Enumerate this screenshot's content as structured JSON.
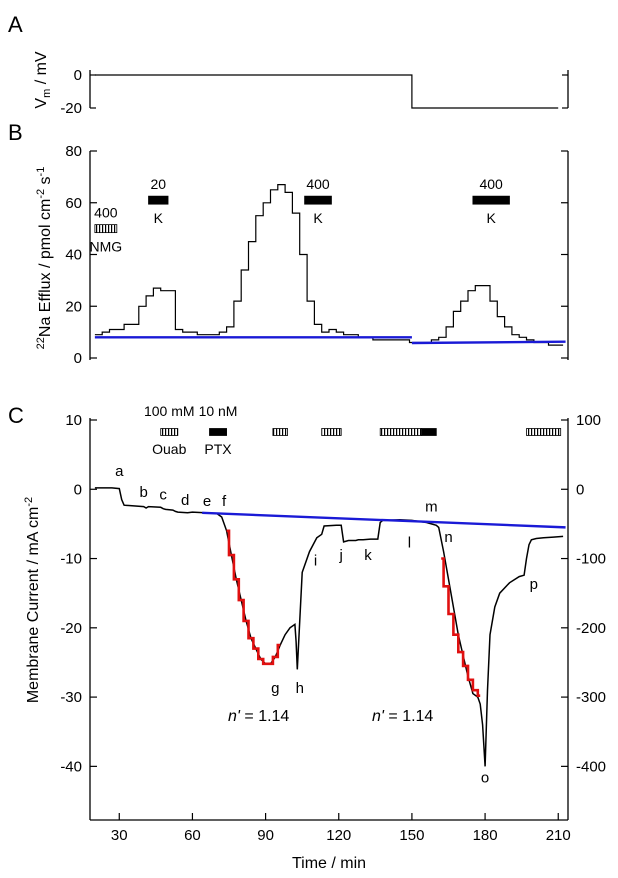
{
  "chart_data": [
    {
      "panel": "A",
      "type": "line",
      "ylabel_main": "V",
      "ylabel_sub": "m",
      "ylabel_unit": " / mV",
      "yticks": [
        0,
        -20
      ],
      "ylim": [
        -20,
        0
      ],
      "series": [
        {
          "x": [
            20,
            150,
            150,
            210
          ],
          "y": [
            0,
            0,
            -20,
            -20
          ]
        }
      ]
    },
    {
      "panel": "B",
      "type": "line",
      "ylabel": "22Na Efflux / pmol cm-2 s-1",
      "ylabel_parts": {
        "sup1": "22",
        "base": "Na Efflux / pmol cm",
        "sup2": "-2",
        "base2": " s",
        "sup3": "-1"
      },
      "yticks": [
        0,
        20,
        40,
        60,
        80
      ],
      "ylim": [
        0,
        80
      ],
      "step_series": {
        "x": [
          20,
          23,
          26,
          29,
          32,
          35,
          38,
          41,
          44,
          47,
          50,
          53,
          56,
          59,
          62,
          65,
          68,
          71,
          74,
          77,
          80,
          83,
          86,
          89,
          92,
          95,
          98,
          101,
          104,
          107,
          110,
          113,
          116,
          119,
          122,
          125,
          128,
          131,
          134,
          137,
          140,
          143,
          146,
          149,
          152,
          155,
          158,
          161,
          164,
          167,
          170,
          173,
          176,
          179,
          182,
          185,
          188,
          191,
          194,
          197,
          200,
          203,
          206,
          209
        ],
        "y": [
          9,
          10,
          11,
          11,
          13,
          13,
          20,
          24,
          27,
          26,
          26,
          11,
          10,
          10,
          9,
          9,
          9,
          10,
          12,
          22,
          34,
          45,
          55,
          60,
          65,
          67,
          64,
          56,
          40,
          22,
          13,
          10,
          11,
          10,
          9,
          9,
          8,
          8,
          7,
          7,
          7,
          7,
          7,
          6,
          6,
          6,
          7,
          8,
          12,
          18,
          22,
          26,
          28,
          28,
          22,
          16,
          12,
          9,
          8,
          7,
          6,
          6,
          5,
          5
        ]
      },
      "baseline_segments": [
        {
          "x": [
            20,
            150
          ],
          "y": [
            8,
            8
          ]
        },
        {
          "x": [
            150,
            213
          ],
          "y": [
            5.8,
            6.3
          ]
        }
      ],
      "bars": [
        {
          "x0": 20,
          "x1": 29,
          "y": 50,
          "style": "hatched",
          "top": "400",
          "bottom": "NMG"
        },
        {
          "x0": 42,
          "x1": 50,
          "y": 61,
          "style": "solid",
          "top": "20",
          "bottom": "K"
        },
        {
          "x0": 106,
          "x1": 117,
          "y": 61,
          "style": "solid",
          "top": "400",
          "bottom": "K"
        },
        {
          "x0": 175,
          "x1": 190,
          "y": 61,
          "style": "solid",
          "top": "400",
          "bottom": "K"
        }
      ]
    },
    {
      "panel": "C",
      "type": "line",
      "ylabel": "Membrane Current / mA cm-2",
      "ylabel_parts": {
        "base": "Membrane Current / mA cm",
        "sup": "-2"
      },
      "xlabel": "Time / min",
      "xticks": [
        30,
        60,
        90,
        120,
        150,
        180,
        210
      ],
      "yticks_left": [
        10,
        0,
        -10,
        -20,
        -30,
        -40
      ],
      "yticks_right": [
        100,
        0,
        -100,
        -200,
        -300,
        -400
      ],
      "ylim_left": [
        -45,
        10
      ],
      "ylim_right": [
        -450,
        100
      ],
      "xlim": [
        18,
        214
      ],
      "current_trace": {
        "x": [
          20,
          27,
          30,
          31,
          32,
          40,
          41,
          42,
          47,
          48,
          49,
          52,
          53,
          54,
          58,
          60,
          65,
          70,
          72,
          74,
          76,
          78,
          80,
          82,
          84,
          86,
          88,
          90,
          92,
          94,
          96,
          98,
          100,
          102,
          102.5,
          103,
          105,
          108,
          111,
          113,
          114,
          119,
          121,
          122,
          124,
          127,
          128,
          130,
          133,
          136,
          137,
          138,
          139,
          145,
          150,
          152,
          156,
          158,
          160,
          161,
          163,
          165,
          167,
          169,
          171,
          173,
          175,
          177,
          178,
          179,
          180,
          181,
          182,
          184,
          186,
          190,
          194,
          196,
          197,
          198,
          199,
          201,
          204,
          208,
          212
        ],
        "y": [
          0.2,
          0.2,
          0.1,
          -1.5,
          -2.3,
          -2.5,
          -2.7,
          -2.5,
          -2.6,
          -2.8,
          -2.9,
          -3.0,
          -3.2,
          -3.3,
          -3.4,
          -3.3,
          -3.4,
          -3.5,
          -4,
          -6,
          -9.5,
          -13,
          -16,
          -19,
          -21.5,
          -23,
          -24.5,
          -25.2,
          -25.2,
          -24.2,
          -22.5,
          -21,
          -20,
          -19.5,
          -22,
          -26,
          -12,
          -9,
          -7,
          -6.5,
          -5.3,
          -5.2,
          -5.2,
          -7.6,
          -7.4,
          -7.4,
          -7.3,
          -7.3,
          -7.2,
          -7.2,
          -4.8,
          -4.5,
          -4.5,
          -4.4,
          -4.5,
          -4.6,
          -4.8,
          -5,
          -5.2,
          -5.5,
          -9,
          -13,
          -17,
          -21,
          -24,
          -27,
          -29.5,
          -30,
          -31,
          -34,
          -40,
          -29,
          -21,
          -17,
          -15,
          -13.5,
          -12.6,
          -12.4,
          -10,
          -8,
          -7.3,
          -7.1,
          -7.0,
          -6.9,
          -6.8
        ]
      },
      "baseline_segment": {
        "x": [
          64,
          213
        ],
        "y": [
          -3.4,
          -5.5
        ]
      },
      "fits": [
        {
          "x": [
            74,
            76,
            78,
            80,
            82,
            84,
            86,
            88,
            90,
            92,
            94,
            96
          ],
          "y": [
            -6,
            -9.5,
            -13,
            -16,
            -19,
            -21.5,
            -23,
            -24.5,
            -25.2,
            -25.2,
            -24.2,
            -22.5
          ],
          "n_prime": "1.14"
        },
        {
          "x": [
            162,
            164,
            166,
            168,
            170,
            172,
            174,
            176,
            178
          ],
          "y": [
            -10,
            -14,
            -18,
            -21,
            -23.5,
            -25.5,
            -27.5,
            -29,
            -29.8
          ],
          "n_prime": "1.14"
        }
      ],
      "bars": [
        {
          "x0": 47,
          "x1": 54,
          "style": "hatched",
          "top": "100 mM",
          "bottom": "Ouab"
        },
        {
          "x0": 67,
          "x1": 74,
          "style": "solid",
          "top": "10 nM",
          "bottom": "PTX"
        },
        {
          "x0": 93,
          "x1": 99,
          "style": "hatched"
        },
        {
          "x0": 113,
          "x1": 121,
          "style": "hatched"
        },
        {
          "x0": 137,
          "x1": 154,
          "style": "hatched"
        },
        {
          "x0": 154,
          "x1": 160,
          "style": "solid"
        },
        {
          "x0": 197,
          "x1": 211,
          "style": "hatched"
        }
      ],
      "letters": [
        {
          "t": "a",
          "x": 30,
          "y": 1.9
        },
        {
          "t": "b",
          "x": 40,
          "y": -1.1
        },
        {
          "t": "c",
          "x": 48,
          "y": -1.5
        },
        {
          "t": "d",
          "x": 57,
          "y": -2.3
        },
        {
          "t": "e",
          "x": 66,
          "y": -2.4
        },
        {
          "t": "f",
          "x": 73,
          "y": -2.4
        },
        {
          "t": "g",
          "x": 94,
          "y": -29.4
        },
        {
          "t": "h",
          "x": 104,
          "y": -29.4
        },
        {
          "t": "i",
          "x": 110.5,
          "y": -11
        },
        {
          "t": "j",
          "x": 121,
          "y": -10.2
        },
        {
          "t": "k",
          "x": 132,
          "y": -10.2
        },
        {
          "t": "l",
          "x": 149,
          "y": -8.4
        },
        {
          "t": "m",
          "x": 158,
          "y": -3.2
        },
        {
          "t": "n",
          "x": 165,
          "y": -7.6
        },
        {
          "t": "o",
          "x": 180,
          "y": -42.3
        },
        {
          "t": "p",
          "x": 200,
          "y": -14.4
        }
      ]
    }
  ],
  "labels": {
    "panel_a": "A",
    "panel_b": "B",
    "panel_c": "C",
    "nprime_italic": "n'",
    "nprime_value": " = 1.14"
  }
}
